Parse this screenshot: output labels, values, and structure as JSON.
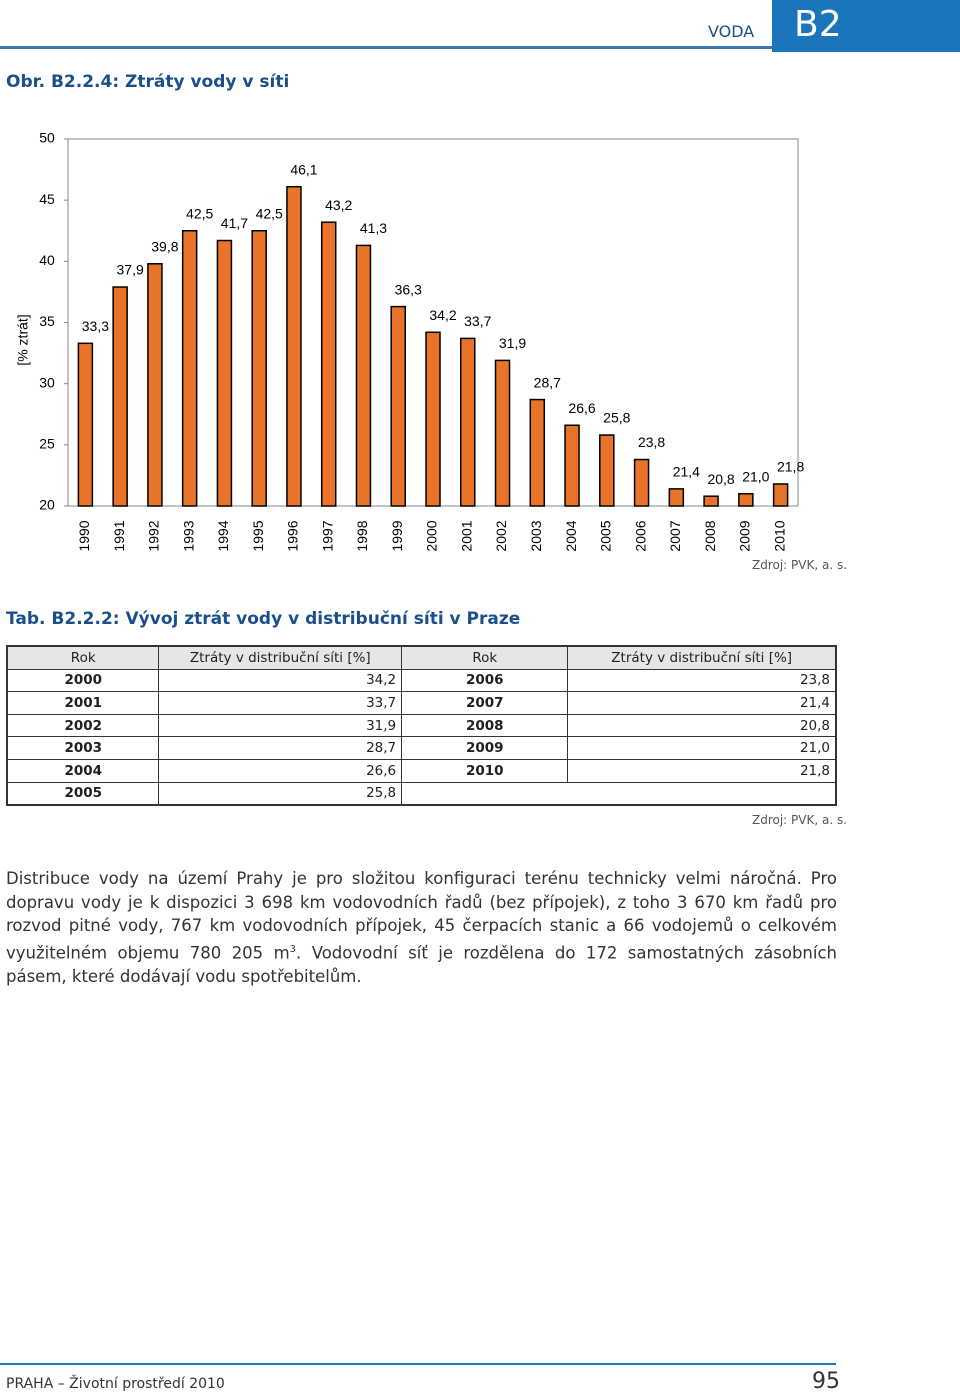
{
  "header": {
    "section": "VODA",
    "code": "B2"
  },
  "figure_title": "Obr. B2.2.4: Ztráty vody v síti",
  "chart_data": {
    "type": "bar",
    "y_label": "[% ztrát]",
    "categories": [
      "1990",
      "1991",
      "1992",
      "1993",
      "1994",
      "1995",
      "1996",
      "1997",
      "1998",
      "1999",
      "2000",
      "2001",
      "2002",
      "2003",
      "2004",
      "2005",
      "2006",
      "2007",
      "2008",
      "2009",
      "2010"
    ],
    "values": [
      33.3,
      37.9,
      39.8,
      42.5,
      41.7,
      42.5,
      46.1,
      43.2,
      41.3,
      36.3,
      34.2,
      33.7,
      31.9,
      28.7,
      26.6,
      25.8,
      23.8,
      21.4,
      20.8,
      21.0,
      21.8
    ],
    "value_labels": [
      "33,3",
      "37,9",
      "39,8",
      "42,5",
      "41,7",
      "42,5",
      "46,1",
      "43,2",
      "41,3",
      "36,3",
      "34,2",
      "33,7",
      "31,9",
      "28,7",
      "26,6",
      "25,8",
      "23,8",
      "21,4",
      "20,8",
      "21,0",
      "21,8"
    ],
    "color": "#e8742a",
    "ylim": [
      20,
      50
    ],
    "yticks": [
      20,
      25,
      30,
      35,
      40,
      45,
      50
    ],
    "grid": false,
    "source": "Zdroj: PVK, a. s."
  },
  "table": {
    "title": "Tab. B2.2.2: Vývoj ztrát vody v distribuční síti v Praze",
    "header": [
      "Rok",
      "Ztráty v distribuční síti [%]",
      "Rok",
      "Ztráty v distribuční síti [%]"
    ],
    "rows": [
      [
        "2000",
        "34,2",
        "2006",
        "23,8"
      ],
      [
        "2001",
        "33,7",
        "2007",
        "21,4"
      ],
      [
        "2002",
        "31,9",
        "2008",
        "20,8"
      ],
      [
        "2003",
        "28,7",
        "2009",
        "21,0"
      ],
      [
        "2004",
        "26,6",
        "2010",
        "21,8"
      ],
      [
        "2005",
        "25,8"
      ]
    ],
    "source": "Zdroj: PVK, a. s."
  },
  "paragraph": {
    "text": "Distribuce vody na území Prahy je pro složitou konfiguraci terénu technicky velmi náročná. Pro dopravu vody je k dispozici 3 698 km vodovodních řadů (bez přípojek), z toho 3 670 km řadů pro rozvod pitné vody, 767 km vodovodních přípojek, 45 čerpacích stanic a 66 vodojemů o celkovém využitelném objemu 780 205 m",
    "sup": "3",
    "text_end": ". Vodovodní síť je rozdělena do 172 samostatných zásobních pásem, které dodávají vodu spotřebitelům."
  },
  "footer": {
    "text": "PRAHA – Životní prostředí 2010",
    "page": "95"
  }
}
